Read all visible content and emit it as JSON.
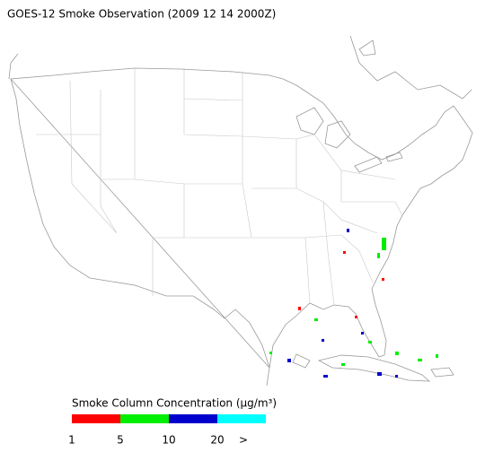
{
  "title": "GOES-12 Smoke Observation (2009 12 14  2000Z)",
  "legend": {
    "title": "Smoke Column Concentration (μg/m³)",
    "colors": [
      "#ff0000",
      "#00ee00",
      "#0000cc",
      "#00ffff"
    ],
    "labels": [
      "1",
      "5",
      "10",
      "20",
      ">"
    ]
  }
}
